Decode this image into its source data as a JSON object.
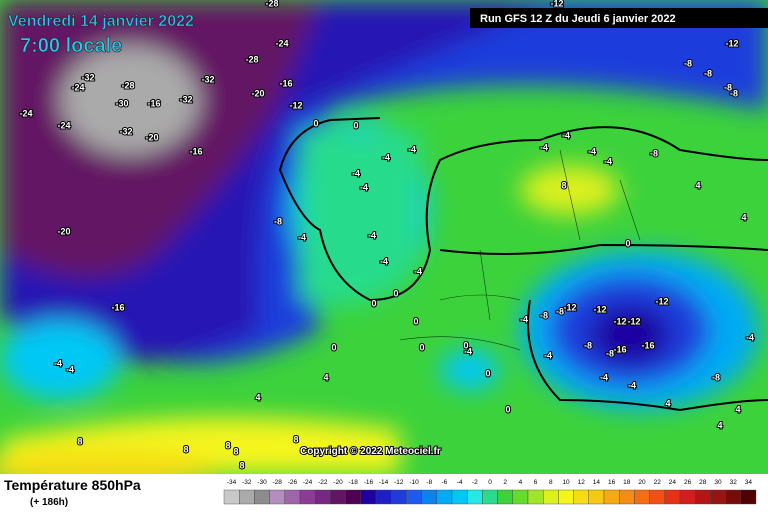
{
  "header": {
    "date": "Vendredi 14 janvier 2022",
    "time": "7:00 locale",
    "run": "Run GFS 12 Z du Jeudi 6 janvier 2022"
  },
  "copyright": "Copyright © 2022 Meteociel.fr",
  "footer": {
    "title": "Température 850hPa",
    "lead": "(+ 186h)"
  },
  "scale": {
    "values": [
      -34,
      -32,
      -30,
      -28,
      -26,
      -24,
      -22,
      -20,
      -18,
      -16,
      -14,
      -12,
      -10,
      -8,
      -6,
      -4,
      -2,
      0,
      2,
      4,
      6,
      8,
      10,
      12,
      14,
      16,
      18,
      20,
      22,
      24,
      26,
      28,
      30,
      32,
      34
    ],
    "colors": [
      "#c8c8c8",
      "#aaaaaa",
      "#8c8c8c",
      "#b48cbe",
      "#a064aa",
      "#8c3c96",
      "#782882",
      "#641464",
      "#500050",
      "#1e00a0",
      "#1e1ec8",
      "#1e3cdc",
      "#1e5af0",
      "#0a82f0",
      "#00aaf5",
      "#00c8f5",
      "#28e6e6",
      "#28dc8c",
      "#3cd23c",
      "#64dc28",
      "#a0e628",
      "#dcf01e",
      "#f5f51e",
      "#f5dc14",
      "#f5c814",
      "#f5aa14",
      "#f58c14",
      "#f56e14",
      "#f55014",
      "#e63214",
      "#d21e1e",
      "#b41414",
      "#961414",
      "#780a0a",
      "#500000"
    ]
  },
  "map_labels": [
    "-28",
    "-24",
    "-28",
    "-32",
    "-24",
    "-28",
    "-32",
    "-16",
    "-20",
    "-30",
    "-32",
    "-16",
    "-12",
    "-24",
    "-24",
    "-32",
    "-20",
    "-16",
    "0",
    "0",
    "-4",
    "-4",
    "-4",
    "-4",
    "-4",
    "-8",
    "-20",
    "-16",
    "-4",
    "-4",
    "-4",
    "0",
    "0",
    "0",
    "0",
    "0",
    "-4",
    "-4",
    "4",
    "4",
    "0",
    "-4",
    "0",
    "0",
    "-12",
    "-8",
    "-8",
    "-8",
    "-8",
    "-12",
    "-4",
    "-4",
    "-4",
    "-8",
    "-4",
    "8",
    "4",
    "4",
    "0",
    "-4",
    "-8",
    "-8",
    "-12",
    "-12",
    "-12",
    "-12",
    "-12",
    "-8",
    "-16",
    "-16",
    "-8",
    "-4",
    "-4",
    "-4",
    "-8",
    "-4",
    "4",
    "4",
    "4",
    "8",
    "8",
    "8",
    "8",
    "8",
    "8"
  ]
}
